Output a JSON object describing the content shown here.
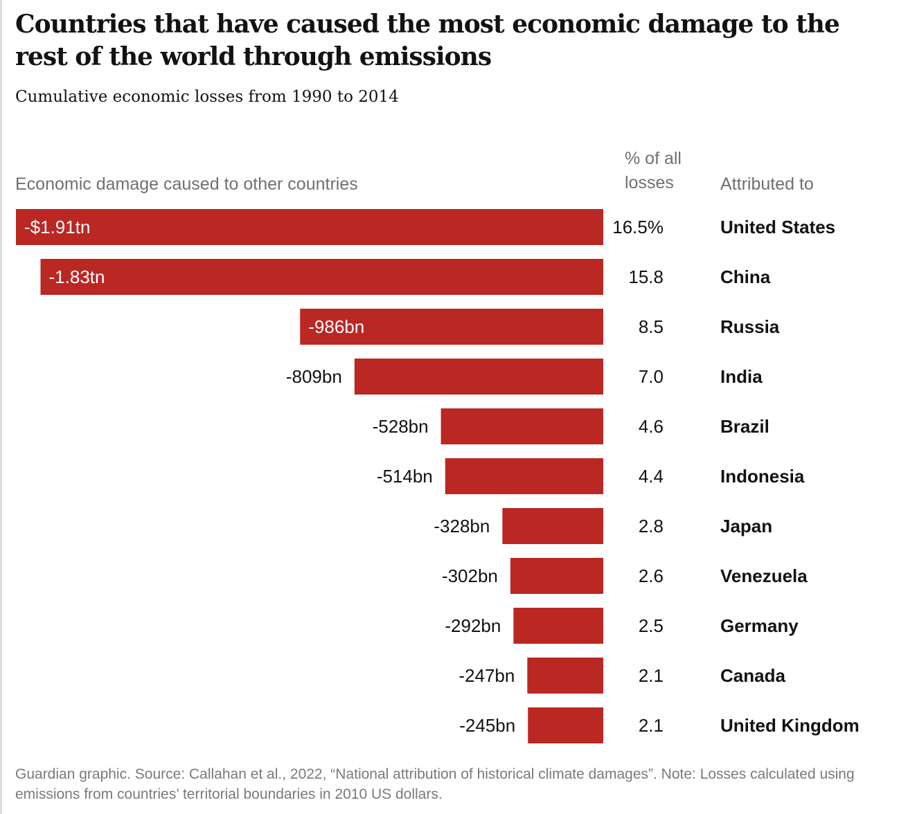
{
  "title": "Countries that have caused the most economic damage to the rest of the world through emissions",
  "subtitle": "Cumulative economic losses from 1990 to 2014",
  "headers": {
    "damage": "Economic damage caused to other countries",
    "percent": "% of all losses",
    "attributed": "Attributed to"
  },
  "footnote": "Guardian graphic. Source: Callahan et al., 2022, “National attribution of historical climate damages”. Note: Losses calculated using emissions from countries’ territorial boundaries in 2010 US dollars.",
  "colors": {
    "bar": "#bb2723",
    "label_inside": "#ffffff",
    "label_outside": "#121212"
  },
  "chart_data": {
    "type": "bar",
    "orientation": "horizontal",
    "unit": "US$ billions (2010 dollars)",
    "categories": [
      "United States",
      "China",
      "Russia",
      "India",
      "Brazil",
      "Indonesia",
      "Japan",
      "Venezuela",
      "Germany",
      "Canada",
      "United Kingdom"
    ],
    "values": [
      -1910,
      -1830,
      -986,
      -809,
      -528,
      -514,
      -328,
      -302,
      -292,
      -247,
      -245
    ],
    "value_labels": [
      "-$1.91tn",
      "-1.83tn",
      "-986bn",
      "-809bn",
      "-528bn",
      "-514bn",
      "-328bn",
      "-302bn",
      "-292bn",
      "-247bn",
      "-245bn"
    ],
    "percent_labels": [
      "16.5%",
      "15.8",
      "8.5",
      "7.0",
      "4.6",
      "4.4",
      "2.8",
      "2.6",
      "2.5",
      "2.1",
      "2.1"
    ],
    "percent_values": [
      16.5,
      15.8,
      8.5,
      7.0,
      4.6,
      4.4,
      2.8,
      2.6,
      2.5,
      2.1,
      2.1
    ],
    "xlim": [
      -1910,
      0
    ],
    "grid": false,
    "legend": "none"
  }
}
